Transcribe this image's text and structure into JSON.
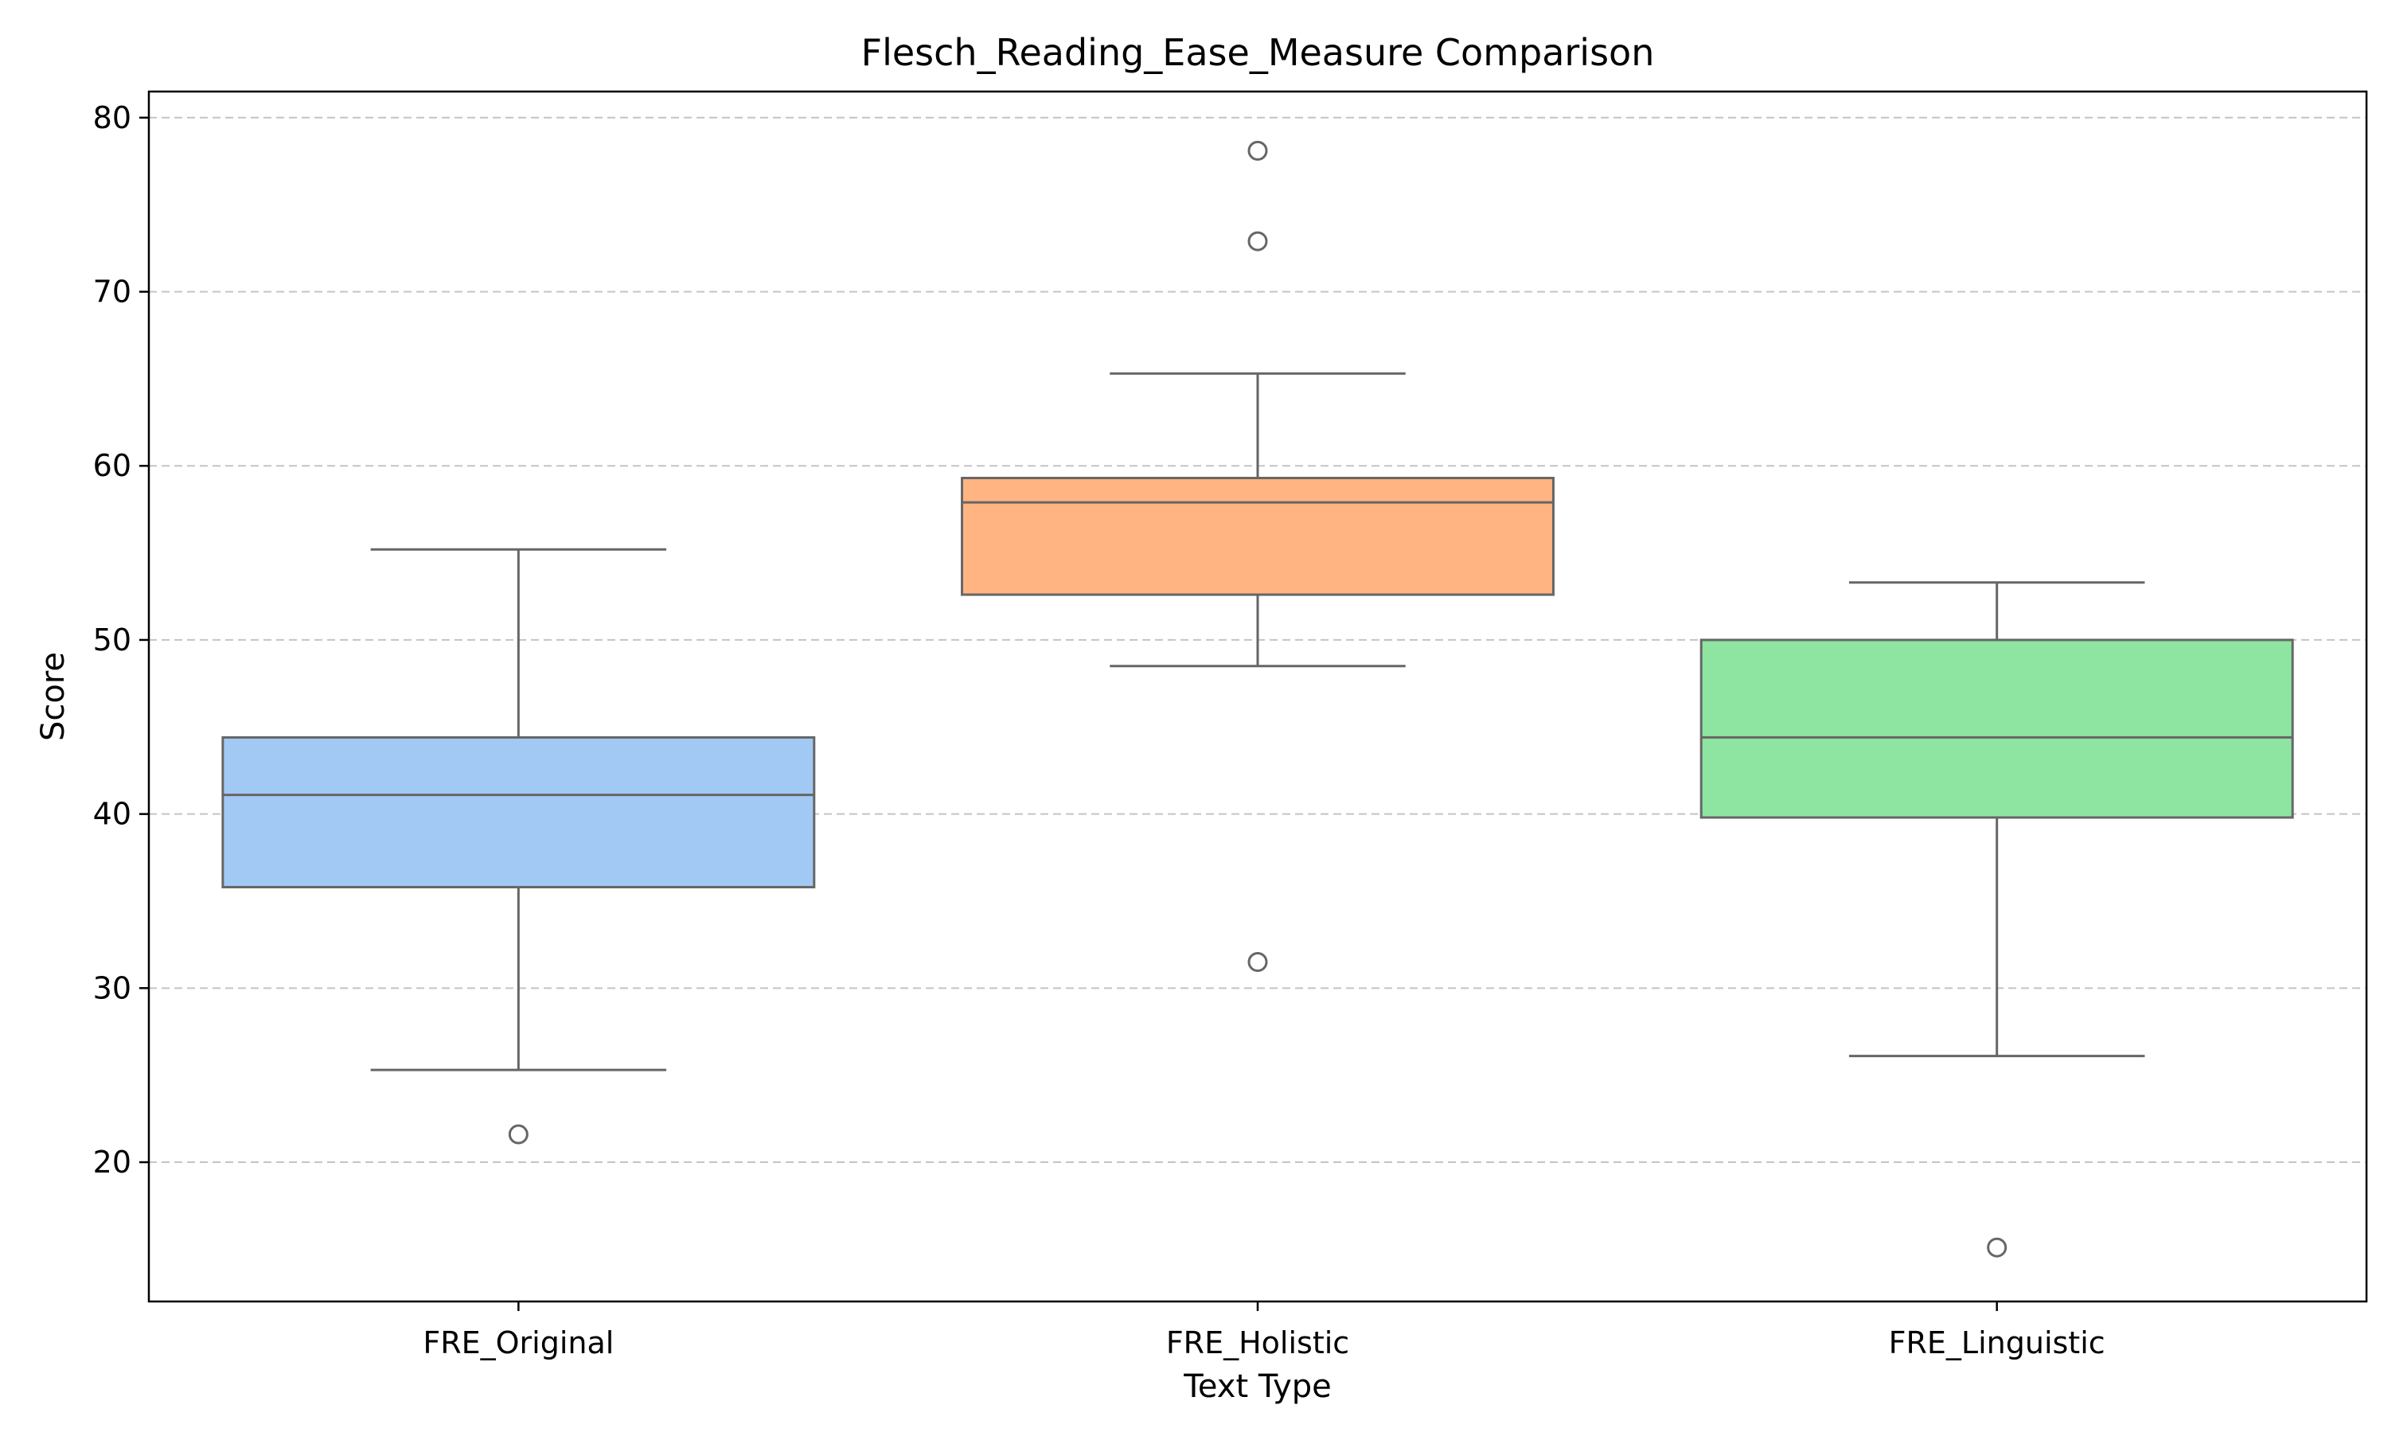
{
  "chart_data": {
    "type": "box",
    "title": "Flesch_Reading_Ease_Measure Comparison",
    "xlabel": "Text Type",
    "ylabel": "Score",
    "ylim": [
      12,
      81.5
    ],
    "yticks": [
      20,
      30,
      40,
      50,
      60,
      70,
      80
    ],
    "grid": "y-dashed",
    "categories": [
      "FRE_Original",
      "FRE_Holistic",
      "FRE_Linguistic"
    ],
    "boxes": [
      {
        "category": "FRE_Original",
        "color": "#a1c9f4",
        "whisker_low": 25.3,
        "q1": 35.8,
        "median": 41.1,
        "q3": 44.4,
        "whisker_high": 55.2,
        "outliers": [
          21.6
        ]
      },
      {
        "category": "FRE_Holistic",
        "color": "#ffb482",
        "whisker_low": 48.5,
        "q1": 52.6,
        "median": 57.9,
        "q3": 59.3,
        "whisker_high": 65.3,
        "outliers": [
          78.1,
          72.9,
          31.5
        ]
      },
      {
        "category": "FRE_Linguistic",
        "color": "#8de5a1",
        "whisker_low": 26.1,
        "q1": 39.8,
        "median": 44.4,
        "q3": 50.0,
        "whisker_high": 53.3,
        "outliers": [
          15.1
        ]
      }
    ]
  }
}
